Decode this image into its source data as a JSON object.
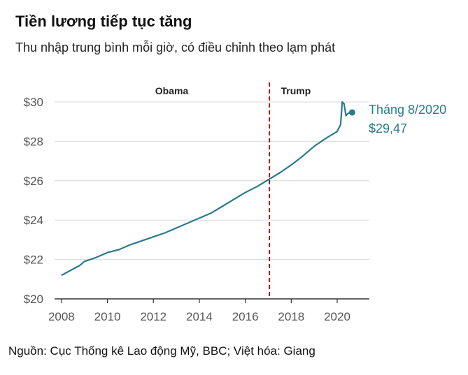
{
  "chart_data": {
    "type": "line",
    "title": "Tiền lương tiếp tục tăng",
    "subtitle": "Thu nhập trung bình mỗi giờ, có điều chỉnh theo lạm phát",
    "source": "Nguồn: Cục Thống kê Lao động Mỹ, BBC; Việt hóa: Giang",
    "xlim": [
      2007.7,
      2021.4
    ],
    "ylim": [
      20,
      30
    ],
    "x_ticks": [
      2008,
      2010,
      2012,
      2014,
      2016,
      2018,
      2020
    ],
    "x_tick_labels": [
      "2008",
      "2010",
      "2012",
      "2014",
      "2016",
      "2018",
      "2020"
    ],
    "y_ticks": [
      20,
      22,
      24,
      26,
      28,
      30
    ],
    "y_tick_labels": [
      "$20",
      "$22",
      "$24",
      "$26",
      "$28",
      "$30"
    ],
    "grid": "horizontal",
    "line_color": "#2a7a8c",
    "divider": {
      "x": 2017.05,
      "color": "#a51c1c",
      "style": "dashed"
    },
    "eras": [
      {
        "label": "Obama",
        "x": 2012.8
      },
      {
        "label": "Trump",
        "x": 2018.2
      }
    ],
    "series": [
      {
        "x": [
          2008.0,
          2008.4,
          2008.8,
          2009.0,
          2009.5,
          2010.0,
          2010.5,
          2011.0,
          2011.5,
          2012.0,
          2012.5,
          2013.0,
          2013.5,
          2014.0,
          2014.5,
          2015.0,
          2015.5,
          2016.0,
          2016.5,
          2017.0,
          2017.5,
          2018.0,
          2018.5,
          2019.0,
          2019.5,
          2020.0,
          2020.15,
          2020.22,
          2020.3,
          2020.38,
          2020.45,
          2020.55,
          2020.65
        ],
        "values": [
          21.2,
          21.45,
          21.7,
          21.9,
          22.1,
          22.35,
          22.5,
          22.75,
          22.95,
          23.15,
          23.35,
          23.6,
          23.85,
          24.1,
          24.35,
          24.7,
          25.05,
          25.4,
          25.7,
          26.05,
          26.4,
          26.8,
          27.25,
          27.75,
          28.15,
          28.5,
          28.85,
          30.0,
          29.9,
          29.3,
          29.4,
          29.45,
          29.47
        ]
      }
    ],
    "annotation": {
      "line1": "Tháng 8/2020",
      "line2": "$29,47",
      "x": 2020.65,
      "y": 29.47
    }
  }
}
